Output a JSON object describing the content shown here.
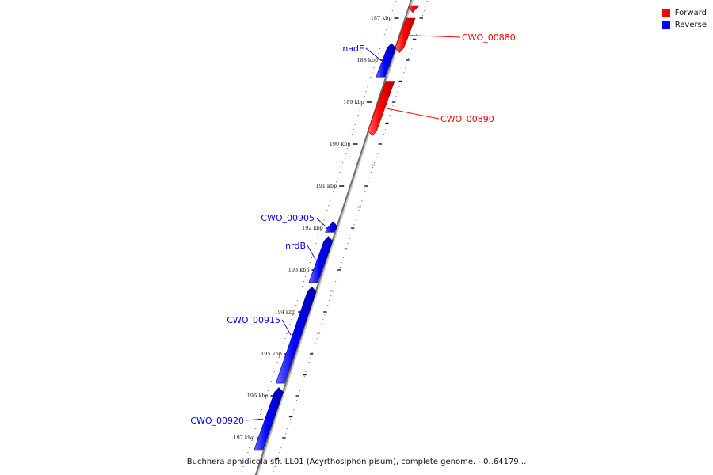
{
  "viewer": {
    "caption": "Buchnera aphidicola str. LL01 (Acyrthosiphon pisum), complete genome. - 0..64179..."
  },
  "legend": {
    "items": [
      {
        "label": "Forward",
        "color": "#ff0000"
      },
      {
        "label": "Reverse",
        "color": "#0000ff"
      }
    ]
  },
  "axis": {
    "ticks": [
      {
        "kbp": 187,
        "label": "187 kbp"
      },
      {
        "kbp": 188,
        "label": "188 kbp"
      },
      {
        "kbp": 189,
        "label": "189 kbp"
      },
      {
        "kbp": 190,
        "label": "190 kbp"
      },
      {
        "kbp": 191,
        "label": "191 kbp"
      },
      {
        "kbp": 192,
        "label": "192 kbp"
      },
      {
        "kbp": 193,
        "label": "193 kbp"
      },
      {
        "kbp": 194,
        "label": "194 kbp"
      },
      {
        "kbp": 195,
        "label": "195 kbp"
      },
      {
        "kbp": 196,
        "label": "196 kbp"
      },
      {
        "kbp": 197,
        "label": "197 kbp"
      }
    ]
  },
  "genes": [
    {
      "id": "g0",
      "label": "",
      "strand": "forward",
      "start_kbp": 186.7,
      "end_kbp": 186.86
    },
    {
      "id": "g1",
      "label": "CWO_00880",
      "strand": "forward",
      "start_kbp": 187.0,
      "end_kbp": 187.82
    },
    {
      "id": "g2",
      "label": "nadE",
      "strand": "reverse",
      "start_kbp": 187.6,
      "end_kbp": 188.4
    },
    {
      "id": "g3",
      "label": "CWO_00890",
      "strand": "forward",
      "start_kbp": 188.5,
      "end_kbp": 189.8
    },
    {
      "id": "g4",
      "label": "CWO_00905",
      "strand": "reverse",
      "start_kbp": 191.85,
      "end_kbp": 192.1
    },
    {
      "id": "g5",
      "label": "nrdB",
      "strand": "reverse",
      "start_kbp": 192.2,
      "end_kbp": 193.3
    },
    {
      "id": "g6",
      "label": "CWO_00915",
      "strand": "reverse",
      "start_kbp": 193.4,
      "end_kbp": 195.7
    },
    {
      "id": "g7",
      "label": "CWO_00920",
      "strand": "reverse",
      "start_kbp": 195.8,
      "end_kbp": 197.3
    }
  ]
}
